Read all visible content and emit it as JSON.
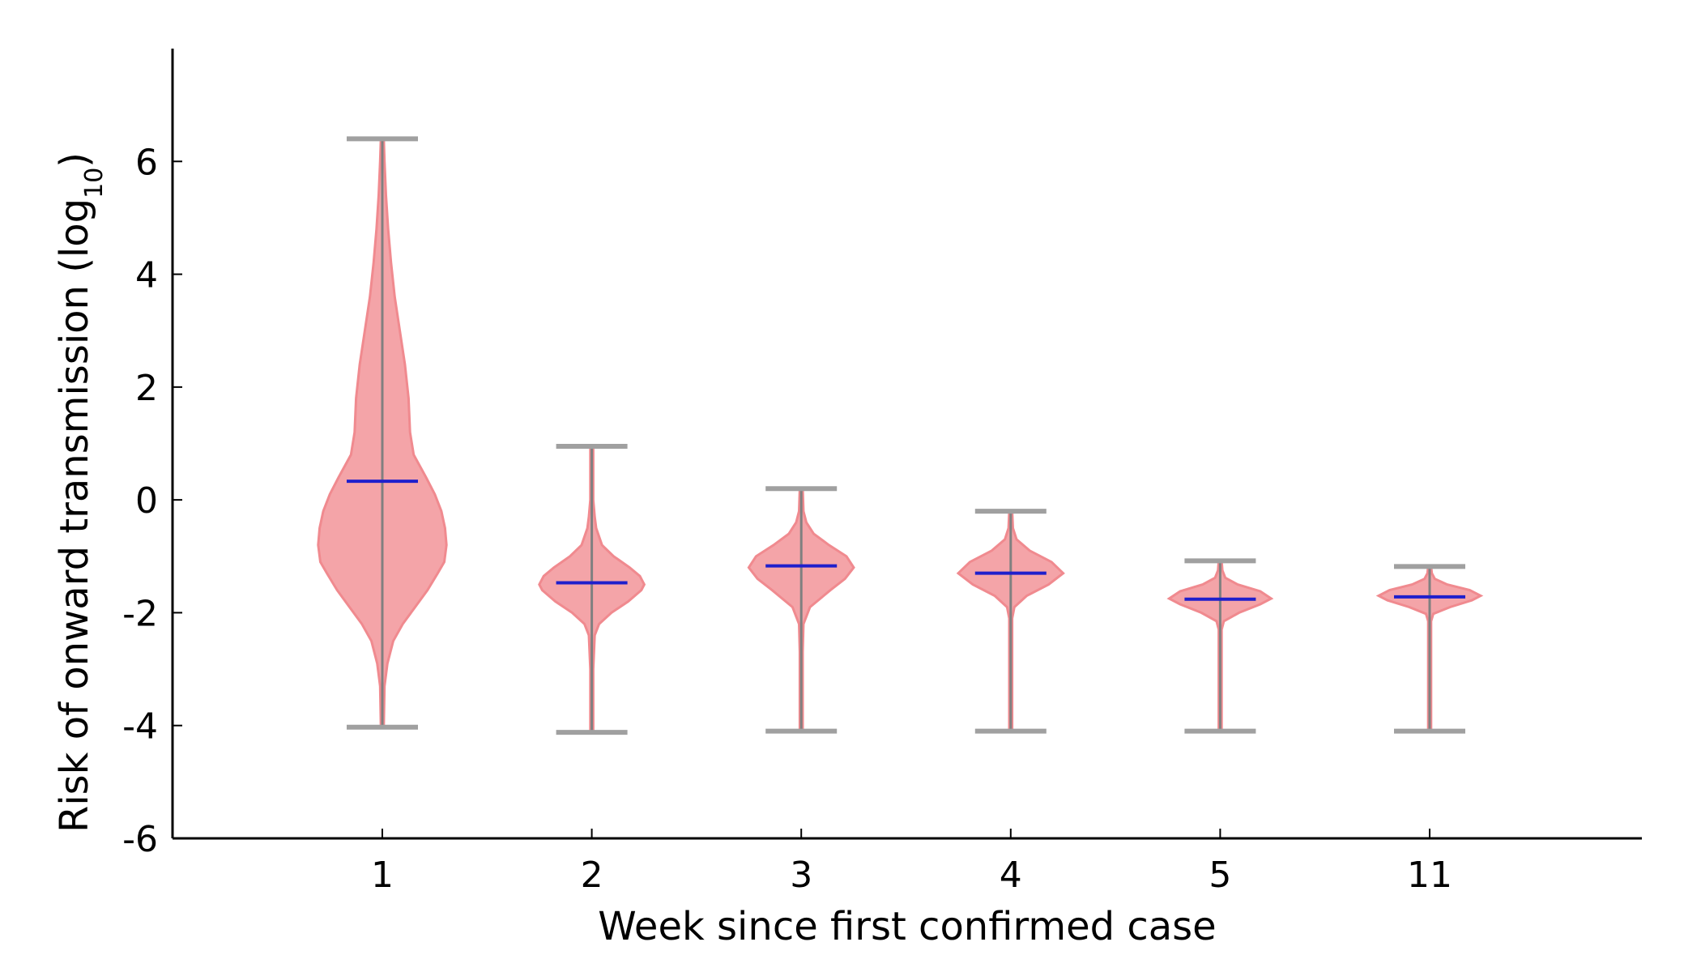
{
  "chart_data": {
    "type": "violin",
    "title": "",
    "xlabel": "Week since first confirmed case",
    "ylabel_main": "Risk of onward transmission (log",
    "ylabel_sub": "10",
    "ylabel_close": ")",
    "ylim": [
      -6,
      8
    ],
    "yticks": [
      -6,
      -4,
      -2,
      0,
      2,
      4,
      6
    ],
    "categories": [
      "1",
      "2",
      "3",
      "4",
      "5",
      "11"
    ],
    "series": [
      {
        "category": "1",
        "min": -4.03,
        "max": 6.4,
        "median": 0.33,
        "profile": [
          [
            -4.0,
            0.02
          ],
          [
            -3.3,
            0.03
          ],
          [
            -2.9,
            0.07
          ],
          [
            -2.5,
            0.15
          ],
          [
            -2.2,
            0.28
          ],
          [
            -1.9,
            0.45
          ],
          [
            -1.6,
            0.62
          ],
          [
            -1.3,
            0.76
          ],
          [
            -1.1,
            0.85
          ],
          [
            -0.8,
            0.88
          ],
          [
            -0.5,
            0.86
          ],
          [
            -0.2,
            0.81
          ],
          [
            0.1,
            0.72
          ],
          [
            0.4,
            0.6
          ],
          [
            0.8,
            0.43
          ],
          [
            1.2,
            0.38
          ],
          [
            1.8,
            0.36
          ],
          [
            2.4,
            0.31
          ],
          [
            3.0,
            0.24
          ],
          [
            3.6,
            0.17
          ],
          [
            4.2,
            0.12
          ],
          [
            4.8,
            0.08
          ],
          [
            5.4,
            0.05
          ],
          [
            6.0,
            0.03
          ],
          [
            6.4,
            0.02
          ]
        ]
      },
      {
        "category": "2",
        "min": -4.12,
        "max": 0.95,
        "median": -1.47,
        "profile": [
          [
            -4.1,
            0.02
          ],
          [
            -3.0,
            0.02
          ],
          [
            -2.4,
            0.04
          ],
          [
            -2.2,
            0.1
          ],
          [
            -2.0,
            0.27
          ],
          [
            -1.8,
            0.5
          ],
          [
            -1.6,
            0.68
          ],
          [
            -1.5,
            0.72
          ],
          [
            -1.35,
            0.66
          ],
          [
            -1.2,
            0.52
          ],
          [
            -1.0,
            0.3
          ],
          [
            -0.8,
            0.14
          ],
          [
            -0.5,
            0.06
          ],
          [
            -0.3,
            0.04
          ],
          [
            0.0,
            0.02
          ],
          [
            0.95,
            0.02
          ]
        ]
      },
      {
        "category": "3",
        "min": -4.1,
        "max": 0.2,
        "median": -1.17,
        "profile": [
          [
            -4.1,
            0.02
          ],
          [
            -2.7,
            0.02
          ],
          [
            -2.2,
            0.03
          ],
          [
            -1.9,
            0.12
          ],
          [
            -1.6,
            0.4
          ],
          [
            -1.4,
            0.6
          ],
          [
            -1.2,
            0.72
          ],
          [
            -1.0,
            0.62
          ],
          [
            -0.8,
            0.38
          ],
          [
            -0.6,
            0.17
          ],
          [
            -0.4,
            0.07
          ],
          [
            -0.2,
            0.03
          ],
          [
            0.2,
            0.02
          ]
        ]
      },
      {
        "category": "4",
        "min": -4.1,
        "max": -0.2,
        "median": -1.3,
        "profile": [
          [
            -4.1,
            0.02
          ],
          [
            -2.1,
            0.02
          ],
          [
            -1.9,
            0.05
          ],
          [
            -1.7,
            0.22
          ],
          [
            -1.5,
            0.52
          ],
          [
            -1.3,
            0.72
          ],
          [
            -1.1,
            0.56
          ],
          [
            -0.9,
            0.26
          ],
          [
            -0.7,
            0.08
          ],
          [
            -0.5,
            0.03
          ],
          [
            -0.2,
            0.02
          ]
        ]
      },
      {
        "category": "5",
        "min": -4.1,
        "max": -1.08,
        "median": -1.76,
        "profile": [
          [
            -4.1,
            0.02
          ],
          [
            -2.3,
            0.02
          ],
          [
            -2.15,
            0.05
          ],
          [
            -2.0,
            0.26
          ],
          [
            -1.85,
            0.55
          ],
          [
            -1.75,
            0.7
          ],
          [
            -1.62,
            0.55
          ],
          [
            -1.5,
            0.24
          ],
          [
            -1.38,
            0.07
          ],
          [
            -1.25,
            0.03
          ],
          [
            -1.08,
            0.02
          ]
        ]
      },
      {
        "category": "11",
        "min": -4.1,
        "max": -1.18,
        "median": -1.72,
        "profile": [
          [
            -4.1,
            0.02
          ],
          [
            -2.15,
            0.02
          ],
          [
            -2.02,
            0.05
          ],
          [
            -1.9,
            0.28
          ],
          [
            -1.78,
            0.58
          ],
          [
            -1.7,
            0.7
          ],
          [
            -1.6,
            0.55
          ],
          [
            -1.5,
            0.24
          ],
          [
            -1.4,
            0.07
          ],
          [
            -1.3,
            0.03
          ],
          [
            -1.18,
            0.02
          ]
        ]
      }
    ],
    "colors": {
      "violin_fill": "#f4a4a8",
      "violin_stroke": "#f08a8f",
      "whisker": "#808080",
      "cap": "#a0a0a0",
      "median": "#1f1fcc"
    },
    "grid": false,
    "legend": "none"
  }
}
